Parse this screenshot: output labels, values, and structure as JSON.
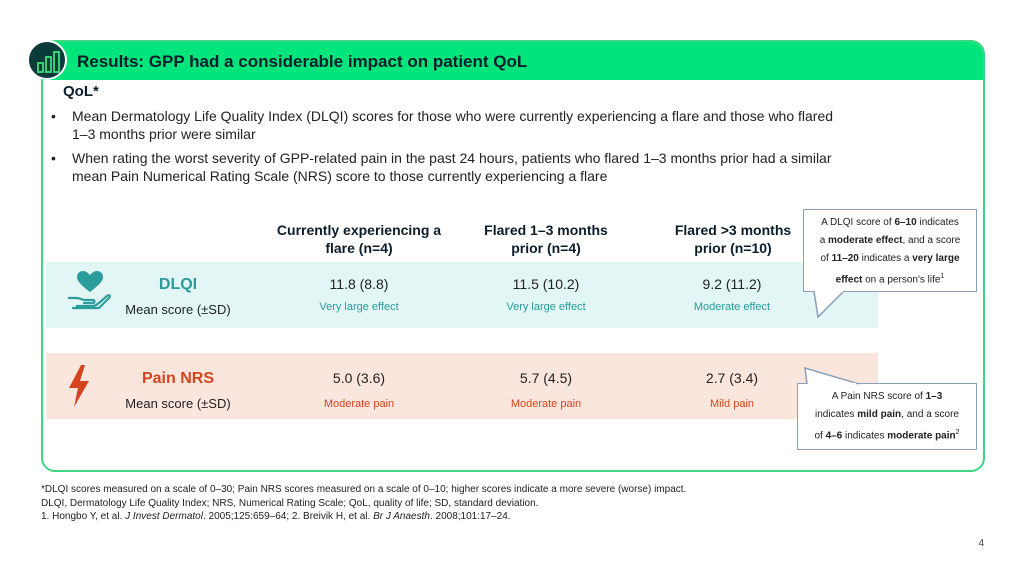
{
  "header": {
    "title": "Results: GPP had a considerable impact on patient QoL"
  },
  "section": {
    "heading": "QoL*"
  },
  "bullets": [
    {
      "line1": "Mean Dermatology Life Quality Index (DLQI) scores for those who were currently experiencing a flare and those who flared",
      "line2": "1–3 months prior were similar"
    },
    {
      "line1": "When rating the worst severity of GPP-related pain in the past 24 hours, patients who flared 1–3 months prior had a similar",
      "line2": "mean Pain Numerical Rating Scale (NRS) score to those currently experiencing a flare"
    }
  ],
  "columns": [
    {
      "line1": "Currently experiencing a",
      "line2": "flare (n=4)"
    },
    {
      "line1": "Flared 1–3 months",
      "line2": "prior (n=4)"
    },
    {
      "line1": "Flared >3 months",
      "line2": "prior (n=10)"
    }
  ],
  "rows": {
    "dlqi": {
      "label": "DLQI",
      "sublabel": "Mean score (±SD)",
      "values": [
        "11.8 (8.8)",
        "11.5 (10.2)",
        "9.2 (11.2)"
      ],
      "effects": [
        "Very large effect",
        "Very large effect",
        "Moderate effect"
      ]
    },
    "pain": {
      "label": "Pain NRS",
      "sublabel": "Mean score (±SD)",
      "values": [
        "5.0 (3.6)",
        "5.7 (4.5)",
        "2.7 (3.4)"
      ],
      "effects": [
        "Moderate pain",
        "Moderate pain",
        "Mild pain"
      ]
    }
  },
  "callouts": {
    "dlqi": {
      "p1": "A DLQI score of ",
      "b1": "6–10",
      "p2": " indicates",
      "p3": "a ",
      "b2": "moderate effect",
      "p4": ", and a score",
      "p5": "of ",
      "b3": "11–20",
      "p6": " indicates a ",
      "b4": "very large",
      "b5": "effect",
      "p7": " on a person's life",
      "ref": "1"
    },
    "pain": {
      "p1": "A Pain NRS score of ",
      "b1": "1–3",
      "p2": "indicates ",
      "b2": "mild pain",
      "p3": ", and a score",
      "p4": "of ",
      "b3": "4–6",
      "p5": " indicates ",
      "b4": "moderate pain",
      "ref": "2"
    }
  },
  "footnotes": {
    "line1": "*DLQI scores measured on a scale of 0–30; Pain NRS scores measured on a scale of 0–10; higher scores indicate a more severe (worse) impact.",
    "line2": "DLQI, Dermatology Life Quality Index; NRS, Numerical Rating Scale; QoL, quality of life; SD, standard deviation.",
    "ref1_a": "1. Hongbo Y, et al. ",
    "ref1_journal": "J Invest Dermatol",
    "ref1_b": ". 2005;125:659–64; 2. Breivik H, et al. ",
    "ref2_journal": "Br J Anaesth",
    "ref2_b": ". 2008;101:17–24."
  },
  "page_number": "4",
  "colors": {
    "header_green": "#00e47c",
    "dlqi_teal": "#2a9c9a",
    "pain_orange": "#d5441c",
    "dlqi_band": "#e2f6f6",
    "pain_band": "#fbe6dd"
  },
  "icons": [
    "bar-chart-icon",
    "heart-hand-icon",
    "lightning-icon"
  ]
}
